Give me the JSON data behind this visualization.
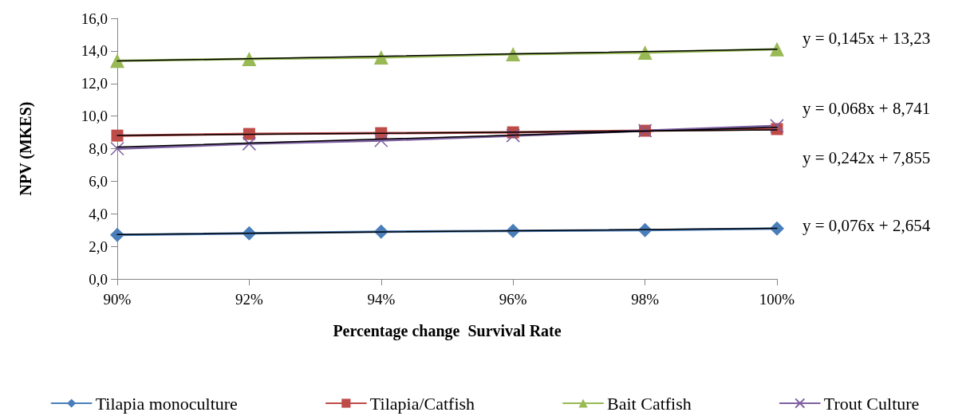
{
  "chart_data": {
    "type": "line",
    "xlabel": "Percentage change  Survival Rate",
    "ylabel": "NPV (MKES)",
    "categories": [
      "90%",
      "92%",
      "94%",
      "96%",
      "98%",
      "100%"
    ],
    "series": [
      {
        "name": "Tilapia monoculture",
        "color": "#4a7ebb",
        "marker": "diamond",
        "values": [
          2.7,
          2.8,
          2.9,
          2.95,
          3.0,
          3.1
        ]
      },
      {
        "name": "Tilapia/Catfish",
        "color": "#be4b48",
        "marker": "square",
        "values": [
          8.8,
          8.9,
          8.95,
          9.0,
          9.1,
          9.2
        ]
      },
      {
        "name": "Bait Catfish",
        "color": "#98b954",
        "marker": "triangle",
        "values": [
          13.4,
          13.5,
          13.6,
          13.8,
          13.9,
          14.1
        ]
      },
      {
        "name": "Trout Culture",
        "color": "#7d5fa0",
        "marker": "cross",
        "values": [
          8.0,
          8.3,
          8.5,
          8.8,
          9.1,
          9.4
        ]
      },
      {
        "type": "line",
        "color": "#000000",
        "marker": "none",
        "x": [
          "90%",
          "100%"
        ],
        "values": [
          2.73,
          3.11
        ]
      },
      {
        "type": "line",
        "color": "#000000",
        "marker": "none",
        "x": [
          "90%",
          "100%"
        ],
        "values": [
          8.81,
          9.15
        ]
      },
      {
        "type": "line",
        "color": "#000000",
        "marker": "none",
        "x": [
          "90%",
          "100%"
        ],
        "values": [
          13.38,
          14.1
        ]
      },
      {
        "type": "line",
        "color": "#000000",
        "marker": "none",
        "x": [
          "90%",
          "100%"
        ],
        "values": [
          8.1,
          9.31
        ]
      }
    ],
    "ylim": [
      0,
      16
    ],
    "yticks": [
      {
        "value": 0,
        "label": "0,0"
      },
      {
        "value": 2,
        "label": "2,0"
      },
      {
        "value": 4,
        "label": "4,0"
      },
      {
        "value": 6,
        "label": "6,0"
      },
      {
        "value": 8,
        "label": "8,0"
      },
      {
        "value": 10,
        "label": "10,0"
      },
      {
        "value": 12,
        "label": "12,0"
      },
      {
        "value": 14,
        "label": "14,0"
      },
      {
        "value": 16,
        "label": "16,0"
      }
    ],
    "annotations": [
      "y = 0,145x + 13,23",
      "y = 0,068x + 8,741",
      "y = 0,242x + 7,855",
      "y = 0,076x + 2,654"
    ],
    "grid": false,
    "legend": "bottom"
  }
}
